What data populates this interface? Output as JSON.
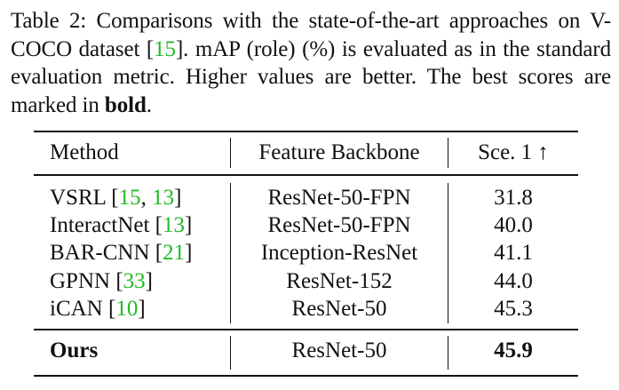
{
  "caption": {
    "prefix": "Table 2: Comparisons with the state-of-the-art approaches on V-COCO dataset [",
    "cite": "15",
    "middle": "]. mAP (role) (%) is evaluated as in the standard evaluation metric. Higher values are better. The best scores are marked in ",
    "bold_word": "bold",
    "suffix": "."
  },
  "table": {
    "headers": [
      "Method",
      "Feature Backbone",
      "Sce. 1 ↑"
    ],
    "rows": [
      {
        "method": "VSRL [",
        "cites": [
          [
            "15",
            ", "
          ],
          [
            "13",
            ""
          ]
        ],
        "close": "]",
        "backbone": "ResNet-50-FPN",
        "score": "31.8"
      },
      {
        "method": "InteractNet [",
        "cites": [
          [
            "13",
            ""
          ]
        ],
        "close": "]",
        "backbone": "ResNet-50-FPN",
        "score": "40.0"
      },
      {
        "method": "BAR-CNN [",
        "cites": [
          [
            "21",
            ""
          ]
        ],
        "close": "]",
        "backbone": "Inception-ResNet",
        "score": "41.1"
      },
      {
        "method": "GPNN [",
        "cites": [
          [
            "33",
            ""
          ]
        ],
        "close": "]",
        "backbone": "ResNet-152",
        "score": "44.0"
      },
      {
        "method": "iCAN [",
        "cites": [
          [
            "10",
            ""
          ]
        ],
        "close": "]",
        "backbone": "ResNet-50",
        "score": "45.3"
      }
    ],
    "ours": {
      "method": "Ours",
      "backbone": "ResNet-50",
      "score": "45.9"
    }
  },
  "colors": {
    "citation": "#22bb22",
    "text": "#111111"
  }
}
